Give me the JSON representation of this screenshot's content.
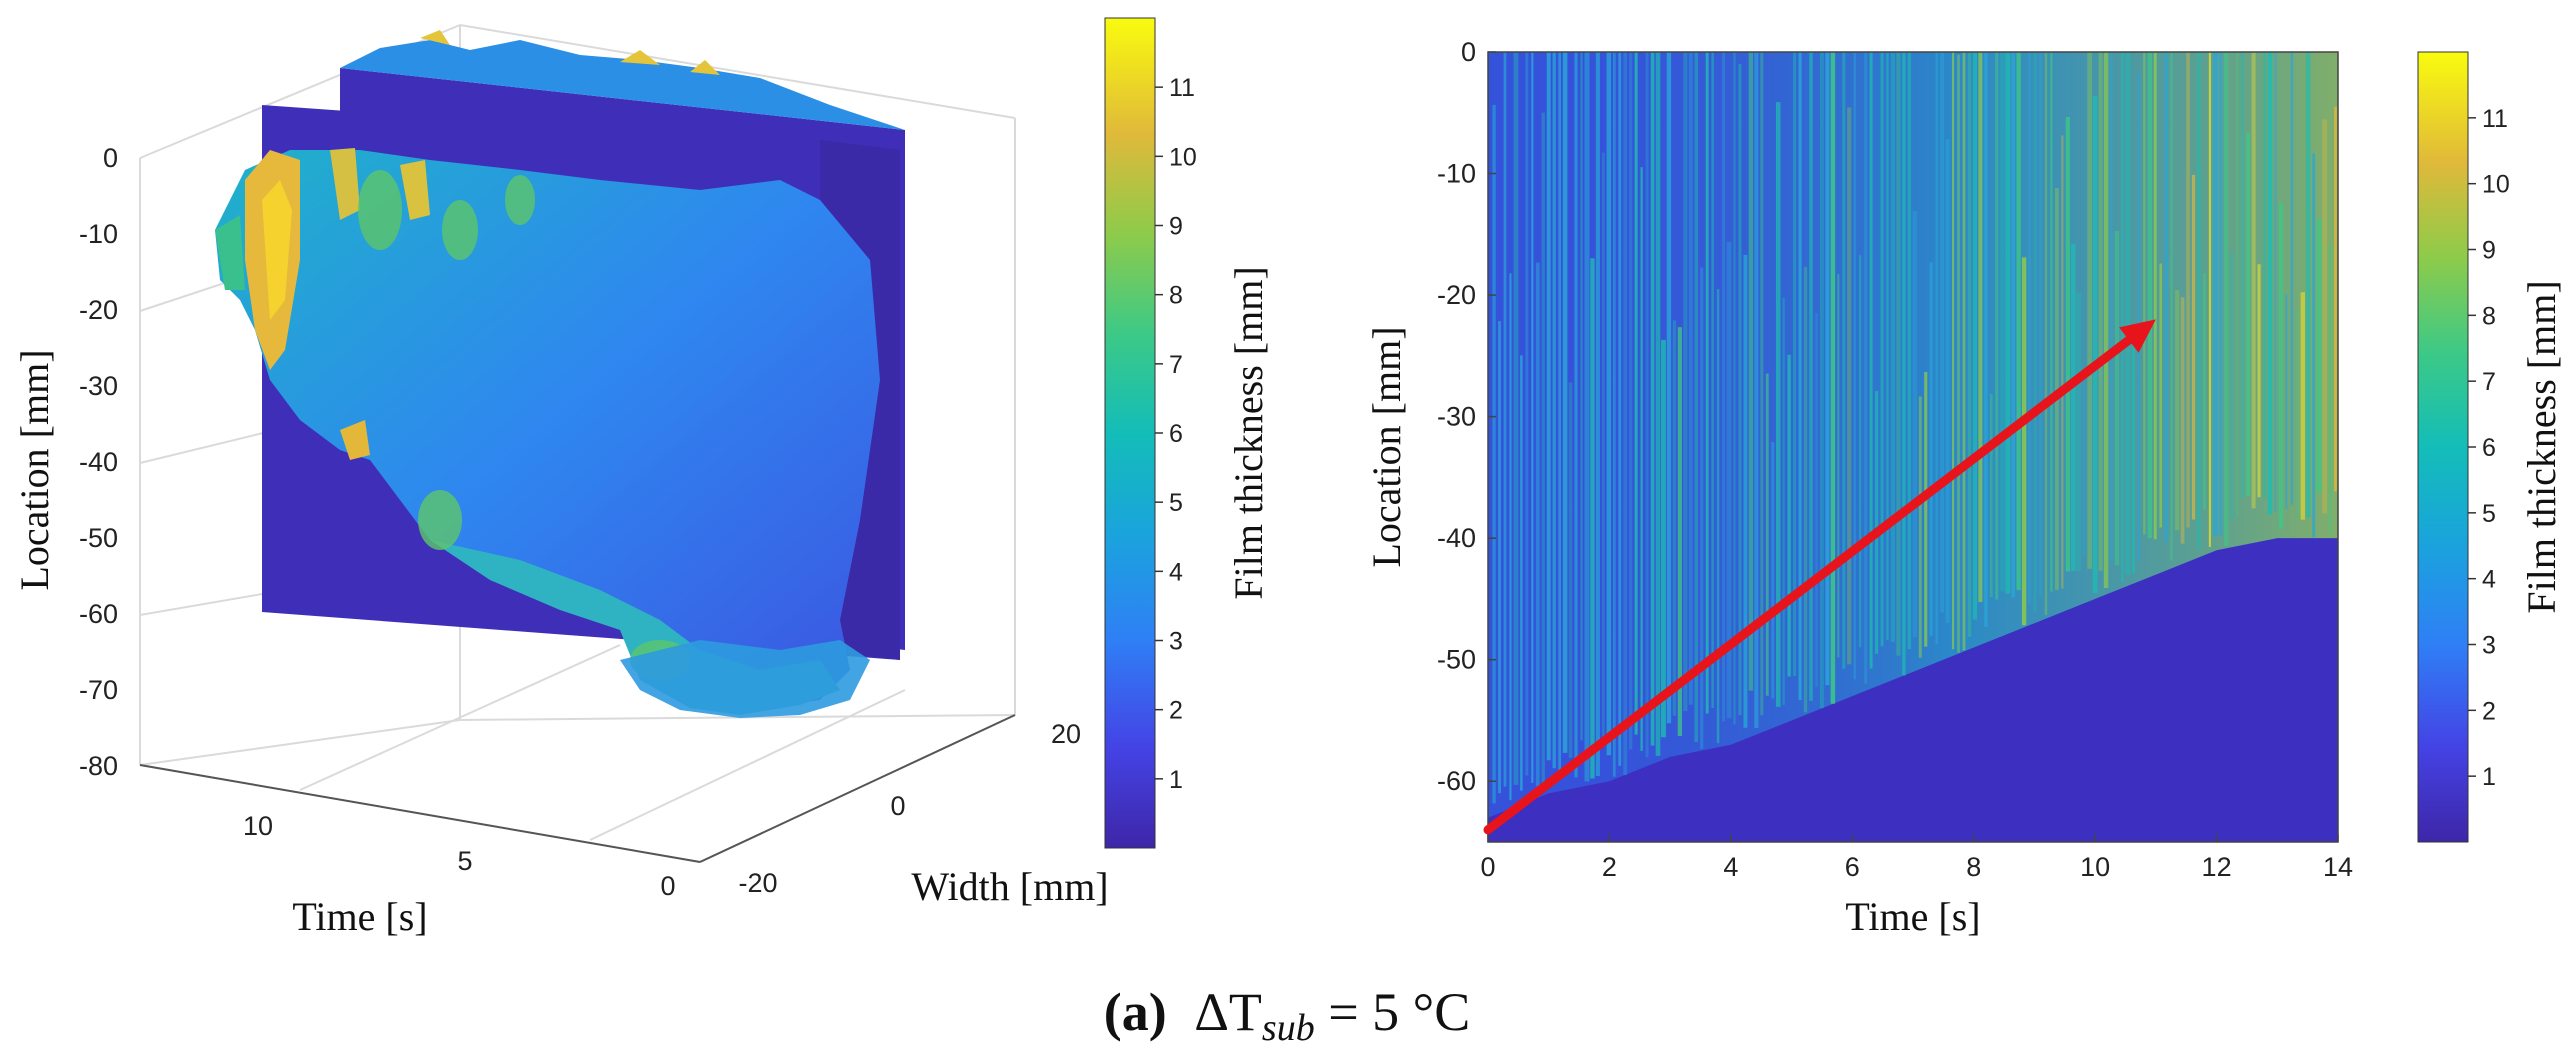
{
  "caption": {
    "label": "(a)",
    "symbol": "ΔT",
    "subscript": "sub",
    "value": " = 5 °C"
  },
  "chart_data": [
    {
      "type": "surface3d",
      "title": "",
      "xlabel": "Time [s]",
      "ylabel": "Width [mm]",
      "zlabel": "Location [mm]",
      "x_ticks": [
        "10",
        "5",
        "0"
      ],
      "y_ticks": [
        "-20",
        "0",
        "20"
      ],
      "z_ticks": [
        "0",
        "-10",
        "-20",
        "-30",
        "-40",
        "-50",
        "-60",
        "-70",
        "-80"
      ],
      "zlim": [
        -80,
        0
      ],
      "ylim": [
        -20,
        20
      ],
      "grid": true,
      "colorbar": {
        "label": "Film thickness [mm]",
        "ticks": [
          "1",
          "2",
          "3",
          "4",
          "5",
          "6",
          "7",
          "8",
          "9",
          "10",
          "11"
        ],
        "range": [
          0,
          12
        ]
      }
    },
    {
      "type": "heatmap",
      "title": "",
      "xlabel": "Time [s]",
      "ylabel": "Location [mm]",
      "xlim": [
        0,
        14
      ],
      "ylim": [
        -65,
        0
      ],
      "x_ticks": [
        "0",
        "2",
        "4",
        "6",
        "8",
        "10",
        "12",
        "14"
      ],
      "y_ticks": [
        "0",
        "-10",
        "-20",
        "-30",
        "-40",
        "-50",
        "-60"
      ],
      "film_front_location_mm": [
        [
          0,
          -63
        ],
        [
          1,
          -61
        ],
        [
          2,
          -60
        ],
        [
          3,
          -58
        ],
        [
          4,
          -57
        ],
        [
          5,
          -55
        ],
        [
          6,
          -53
        ],
        [
          7,
          -51
        ],
        [
          8,
          -49
        ],
        [
          9,
          -47
        ],
        [
          10,
          -45
        ],
        [
          11,
          -43
        ],
        [
          12,
          -41
        ],
        [
          13,
          -40
        ],
        [
          14,
          -40
        ]
      ],
      "annotation": {
        "type": "arrow",
        "color": "#e8141b",
        "from": [
          0,
          -64
        ],
        "to": [
          11,
          -22
        ]
      },
      "colorbar": {
        "label": "Film thickness [mm]",
        "ticks": [
          "1",
          "2",
          "3",
          "4",
          "5",
          "6",
          "7",
          "8",
          "9",
          "10",
          "11"
        ],
        "range": [
          0,
          12
        ]
      }
    }
  ]
}
